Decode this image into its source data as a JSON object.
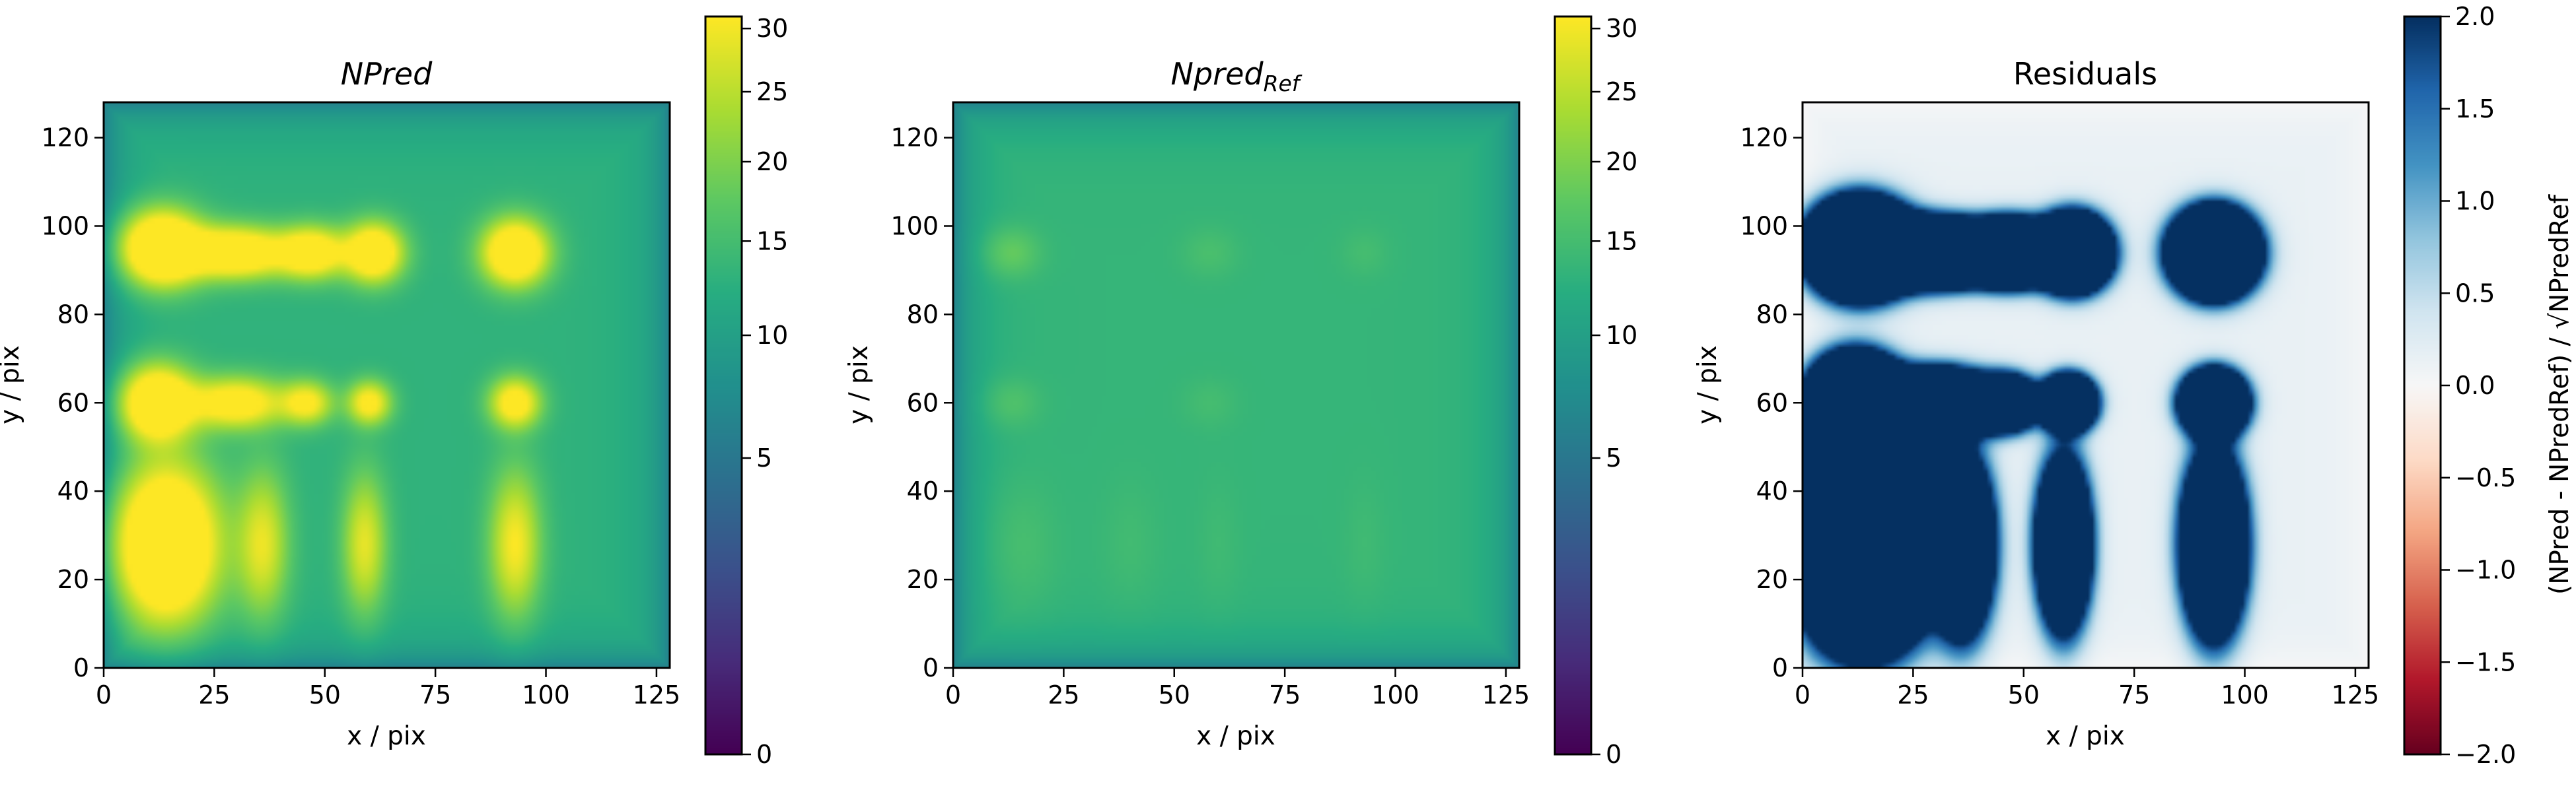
{
  "chart_data": [
    {
      "type": "heatmap",
      "title": "NPred",
      "xlabel": "x / pix",
      "ylabel": "y / pix",
      "xlim": [
        0,
        128
      ],
      "ylim": [
        0,
        128
      ],
      "x_ticks": [
        0,
        25,
        50,
        75,
        100,
        125
      ],
      "y_ticks": [
        0,
        20,
        40,
        60,
        80,
        100,
        120
      ],
      "colormap": "viridis",
      "colorbar": {
        "scale": "sqrt",
        "range": [
          0,
          31
        ],
        "ticks": [
          0,
          5,
          10,
          15,
          20,
          25,
          30
        ]
      },
      "background_level": 13,
      "blobs": [
        {
          "x": 13,
          "y": 95,
          "rx": 11,
          "ry": 10,
          "level": 38
        },
        {
          "x": 30,
          "y": 94,
          "rx": 14,
          "ry": 7,
          "level": 30
        },
        {
          "x": 47,
          "y": 94,
          "rx": 9,
          "ry": 7,
          "level": 26
        },
        {
          "x": 61,
          "y": 94,
          "rx": 8,
          "ry": 8,
          "level": 30
        },
        {
          "x": 93,
          "y": 94,
          "rx": 9,
          "ry": 9,
          "level": 32
        },
        {
          "x": 12,
          "y": 60,
          "rx": 10,
          "ry": 10,
          "level": 34
        },
        {
          "x": 30,
          "y": 60,
          "rx": 13,
          "ry": 7,
          "level": 24
        },
        {
          "x": 46,
          "y": 60,
          "rx": 7,
          "ry": 6,
          "level": 19
        },
        {
          "x": 60,
          "y": 60,
          "rx": 6,
          "ry": 6,
          "level": 21
        },
        {
          "x": 93,
          "y": 60,
          "rx": 7,
          "ry": 7,
          "level": 23
        },
        {
          "x": 14,
          "y": 28,
          "rx": 14,
          "ry": 21,
          "level": 40
        },
        {
          "x": 36,
          "y": 28,
          "rx": 7,
          "ry": 20,
          "level": 16
        },
        {
          "x": 59,
          "y": 28,
          "rx": 6,
          "ry": 19,
          "level": 16
        },
        {
          "x": 93,
          "y": 28,
          "rx": 7,
          "ry": 20,
          "level": 18
        }
      ]
    },
    {
      "type": "heatmap",
      "title": "Npred",
      "title_subscript": "Ref",
      "xlabel": "x / pix",
      "ylabel": "y / pix",
      "xlim": [
        0,
        128
      ],
      "ylim": [
        0,
        128
      ],
      "x_ticks": [
        0,
        25,
        50,
        75,
        100,
        125
      ],
      "y_ticks": [
        0,
        20,
        40,
        60,
        80,
        100,
        120
      ],
      "colormap": "viridis",
      "colorbar": {
        "scale": "sqrt",
        "range": [
          0,
          31
        ],
        "ticks": [
          0,
          5,
          10,
          15,
          20,
          25,
          30
        ]
      },
      "background_level": 13.5,
      "blobs": [
        {
          "x": 13,
          "y": 94,
          "rx": 8,
          "ry": 7,
          "level": 5
        },
        {
          "x": 58,
          "y": 94,
          "rx": 8,
          "ry": 7,
          "level": 2
        },
        {
          "x": 93,
          "y": 94,
          "rx": 7,
          "ry": 7,
          "level": 1.5
        },
        {
          "x": 13,
          "y": 60,
          "rx": 8,
          "ry": 7,
          "level": 3
        },
        {
          "x": 58,
          "y": 60,
          "rx": 8,
          "ry": 7,
          "level": 1.5
        },
        {
          "x": 15,
          "y": 28,
          "rx": 10,
          "ry": 18,
          "level": 2
        },
        {
          "x": 40,
          "y": 28,
          "rx": 8,
          "ry": 18,
          "level": 1.2
        },
        {
          "x": 60,
          "y": 28,
          "rx": 6,
          "ry": 18,
          "level": 1
        },
        {
          "x": 93,
          "y": 28,
          "rx": 6,
          "ry": 18,
          "level": 1
        }
      ]
    },
    {
      "type": "heatmap",
      "title": "Residuals",
      "xlabel": "x / pix",
      "ylabel": "y / pix",
      "xlim": [
        0,
        128
      ],
      "ylim": [
        0,
        128
      ],
      "x_ticks": [
        0,
        25,
        50,
        75,
        100,
        125
      ],
      "y_ticks": [
        0,
        20,
        40,
        60,
        80,
        100,
        120
      ],
      "colormap": "RdBu",
      "colorbar": {
        "scale": "linear",
        "range": [
          -2,
          2
        ],
        "ticks": [
          -2,
          -1.5,
          -1,
          -0.5,
          0,
          0.5,
          1,
          1.5,
          2
        ],
        "tick_labels": [
          "−2.0",
          "−1.5",
          "−1.0",
          "−0.5",
          "0.0",
          "0.5",
          "1.0",
          "1.5",
          "2.0"
        ],
        "label": "(NPred - NPredRef) / √NPredRef"
      },
      "background_level": 0.15,
      "blobs": [
        {
          "x": 13,
          "y": 95,
          "rx": 11,
          "ry": 10,
          "level": 30
        },
        {
          "x": 30,
          "y": 94,
          "rx": 14,
          "ry": 7,
          "level": 24
        },
        {
          "x": 47,
          "y": 94,
          "rx": 9,
          "ry": 7,
          "level": 20
        },
        {
          "x": 61,
          "y": 94,
          "rx": 8,
          "ry": 8,
          "level": 24
        },
        {
          "x": 93,
          "y": 94,
          "rx": 9,
          "ry": 9,
          "level": 28
        },
        {
          "x": 12,
          "y": 60,
          "rx": 10,
          "ry": 10,
          "level": 28
        },
        {
          "x": 30,
          "y": 60,
          "rx": 13,
          "ry": 7,
          "level": 22
        },
        {
          "x": 46,
          "y": 60,
          "rx": 7,
          "ry": 6,
          "level": 14
        },
        {
          "x": 60,
          "y": 60,
          "rx": 6,
          "ry": 6,
          "level": 18
        },
        {
          "x": 93,
          "y": 60,
          "rx": 7,
          "ry": 7,
          "level": 20
        },
        {
          "x": 14,
          "y": 28,
          "rx": 14,
          "ry": 21,
          "level": 34
        },
        {
          "x": 36,
          "y": 28,
          "rx": 7,
          "ry": 20,
          "level": 14
        },
        {
          "x": 59,
          "y": 28,
          "rx": 6,
          "ry": 19,
          "level": 14
        },
        {
          "x": 93,
          "y": 28,
          "rx": 7,
          "ry": 20,
          "level": 16
        }
      ]
    }
  ]
}
